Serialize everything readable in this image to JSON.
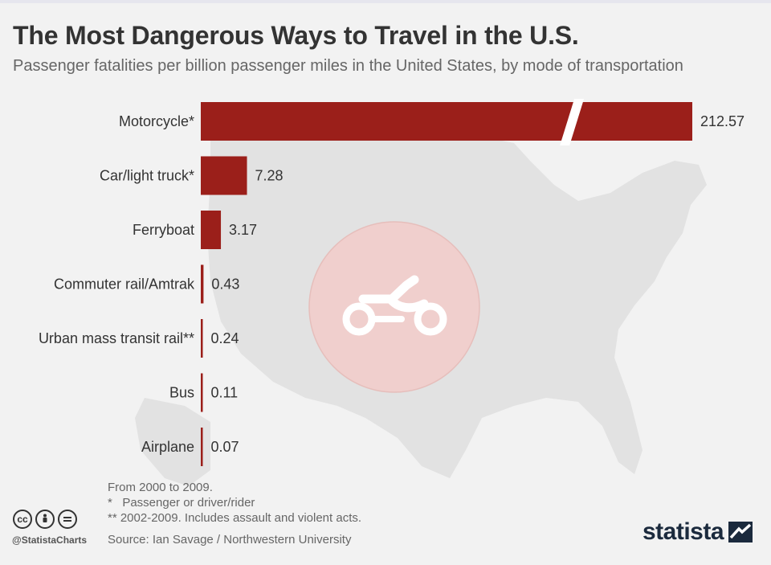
{
  "title": "The Most Dangerous Ways to Travel in the U.S.",
  "subtitle": "Passenger fatalities per billion passenger miles in the United States, by mode of transportation",
  "colors": {
    "bar": "#9b1f1a",
    "map": "#e2e2e2",
    "circle": "#f0cfcd",
    "background": "#f2f2f2"
  },
  "icons": {
    "center": "motorcycle-icon",
    "license": [
      "cc-icon",
      "by-icon",
      "nd-icon"
    ],
    "brand": "statista-logo-icon"
  },
  "chart_data": {
    "type": "bar",
    "orientation": "horizontal",
    "categories": [
      "Motorcycle*",
      "Car/light truck*",
      "Ferryboat",
      "Commuter rail/Amtrak",
      "Urban mass transit rail**",
      "Bus",
      "Airplane"
    ],
    "values": [
      212.57,
      7.28,
      3.17,
      0.43,
      0.24,
      0.11,
      0.07
    ],
    "value_labels": [
      "212.57",
      "7.28",
      "3.17",
      "0.43",
      "0.24",
      "0.11",
      "0.07"
    ],
    "axis_break": {
      "category": "Motorcycle*",
      "shown_as": "broken bar"
    },
    "grid": false,
    "legend": "none"
  },
  "footnotes": [
    "From 2000 to 2009.",
    "*   Passenger or driver/rider",
    "** 2002-2009. Includes assault and violent acts."
  ],
  "source": "Source: Ian Savage / Northwestern University",
  "handle": "@StatistaCharts",
  "brand": "statista"
}
